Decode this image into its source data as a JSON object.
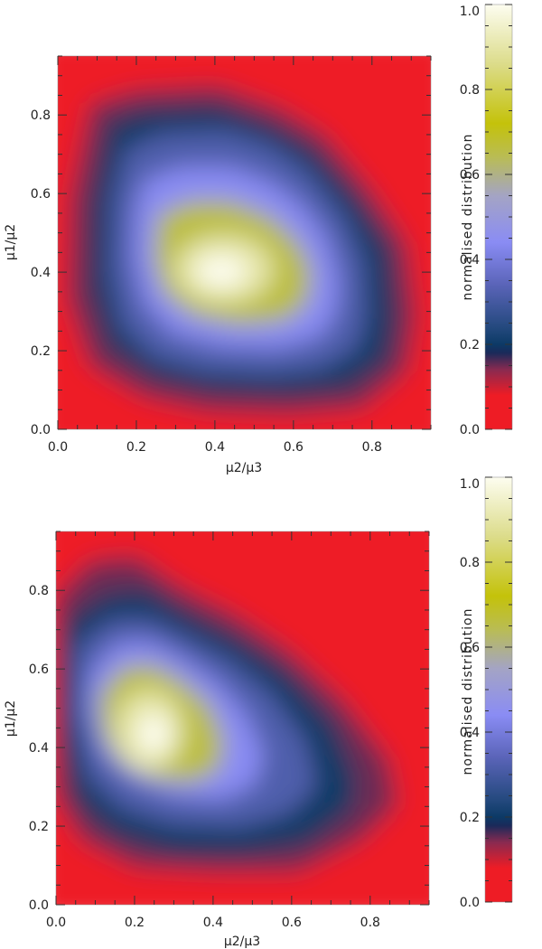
{
  "chart_data": [
    {
      "type": "heatmap",
      "title": "",
      "xlabel": "μ2/μ3",
      "ylabel": "μ1/μ2",
      "xlim": [
        0.0,
        0.95
      ],
      "ylim": [
        0.0,
        0.95
      ],
      "x_ticks": [
        "0.0",
        "0.2",
        "0.4",
        "0.6",
        "0.8"
      ],
      "y_ticks": [
        "0.0",
        "0.2",
        "0.4",
        "0.6",
        "0.8"
      ],
      "peak": {
        "x": 0.42,
        "y": 0.4
      },
      "colorbar": {
        "label": "normalised distribution",
        "range": [
          0.0,
          1.0
        ],
        "ticks": [
          "0.0",
          "0.2",
          "0.4",
          "0.6",
          "0.8",
          "1.0"
        ]
      }
    },
    {
      "type": "heatmap",
      "title": "",
      "xlabel": "μ2/μ3",
      "ylabel": "μ1/μ2",
      "xlim": [
        0.0,
        0.95
      ],
      "ylim": [
        0.0,
        0.95
      ],
      "x_ticks": [
        "0.0",
        "0.2",
        "0.4",
        "0.6",
        "0.8"
      ],
      "y_ticks": [
        "0.0",
        "0.2",
        "0.4",
        "0.6",
        "0.8"
      ],
      "peak": {
        "x": 0.25,
        "y": 0.43
      },
      "colorbar": {
        "label": "normalised distribution",
        "range": [
          0.0,
          1.0
        ],
        "ticks": [
          "0.0",
          "0.2",
          "0.4",
          "0.6",
          "0.8",
          "1.0"
        ]
      }
    }
  ],
  "colors": {
    "stops": [
      {
        "v": 0.0,
        "c": "#ee1c25"
      },
      {
        "v": 0.08,
        "c": "#ee1c25"
      },
      {
        "v": 0.14,
        "c": "#8a2a50"
      },
      {
        "v": 0.18,
        "c": "#1a2a5a"
      },
      {
        "v": 0.2,
        "c": "#0c3a66"
      },
      {
        "v": 0.24,
        "c": "#24497e"
      },
      {
        "v": 0.34,
        "c": "#5a64b8"
      },
      {
        "v": 0.44,
        "c": "#8a8cf4"
      },
      {
        "v": 0.55,
        "c": "#a4a4c4"
      },
      {
        "v": 0.64,
        "c": "#b9bc56"
      },
      {
        "v": 0.72,
        "c": "#c4c20a"
      },
      {
        "v": 0.86,
        "c": "#dcdc8a"
      },
      {
        "v": 1.0,
        "c": "#fdfdf0"
      }
    ]
  }
}
